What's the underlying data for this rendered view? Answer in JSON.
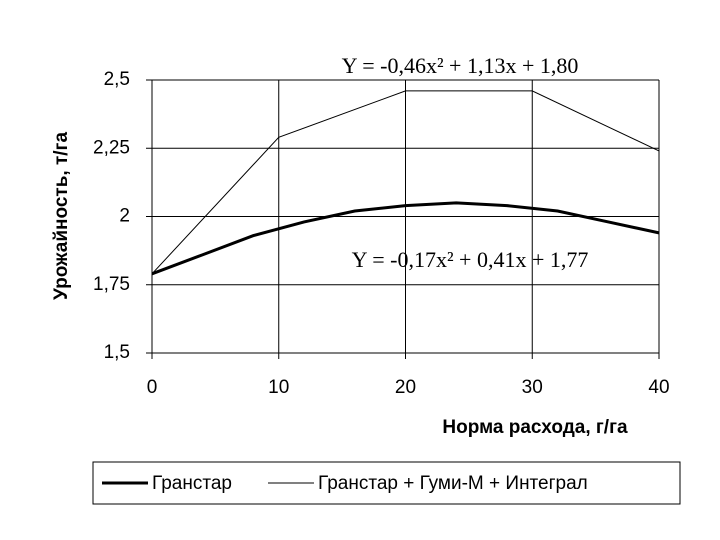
{
  "chart_data": {
    "type": "line",
    "y_label": "Урожайность, т/га",
    "x_label": "Норма расхода, г/га",
    "annotations": [
      "Y = -0,46x² + 1,13x + 1,80",
      "Y = -0,17x² + 0,41x + 1,77"
    ],
    "xlim": [
      0,
      40
    ],
    "xticks": [
      0,
      10,
      20,
      30,
      40
    ],
    "ylim": [
      1.5,
      2.5
    ],
    "yticks": [
      {
        "value": 1.5,
        "label": "1,5"
      },
      {
        "value": 1.75,
        "label": "1,75"
      },
      {
        "value": 2,
        "label": "2"
      },
      {
        "value": 2.25,
        "label": "2,25"
      },
      {
        "value": 2.5,
        "label": "2,5"
      }
    ],
    "grid": true,
    "series": [
      {
        "name": "Гранстар",
        "color": "#000000",
        "width": 3,
        "x": [
          0,
          4,
          8,
          12,
          16,
          20,
          24,
          28,
          32,
          36,
          40
        ],
        "values": [
          1.79,
          1.86,
          1.93,
          1.98,
          2.02,
          2.04,
          2.05,
          2.04,
          2.02,
          1.98,
          1.94
        ]
      },
      {
        "name": "Гранстар + Гуми-М + Интеграл",
        "color": "#000000",
        "width": 1,
        "x": [
          0,
          10,
          20,
          30,
          40
        ],
        "values": [
          1.79,
          2.29,
          2.46,
          2.46,
          2.24
        ]
      }
    ]
  }
}
